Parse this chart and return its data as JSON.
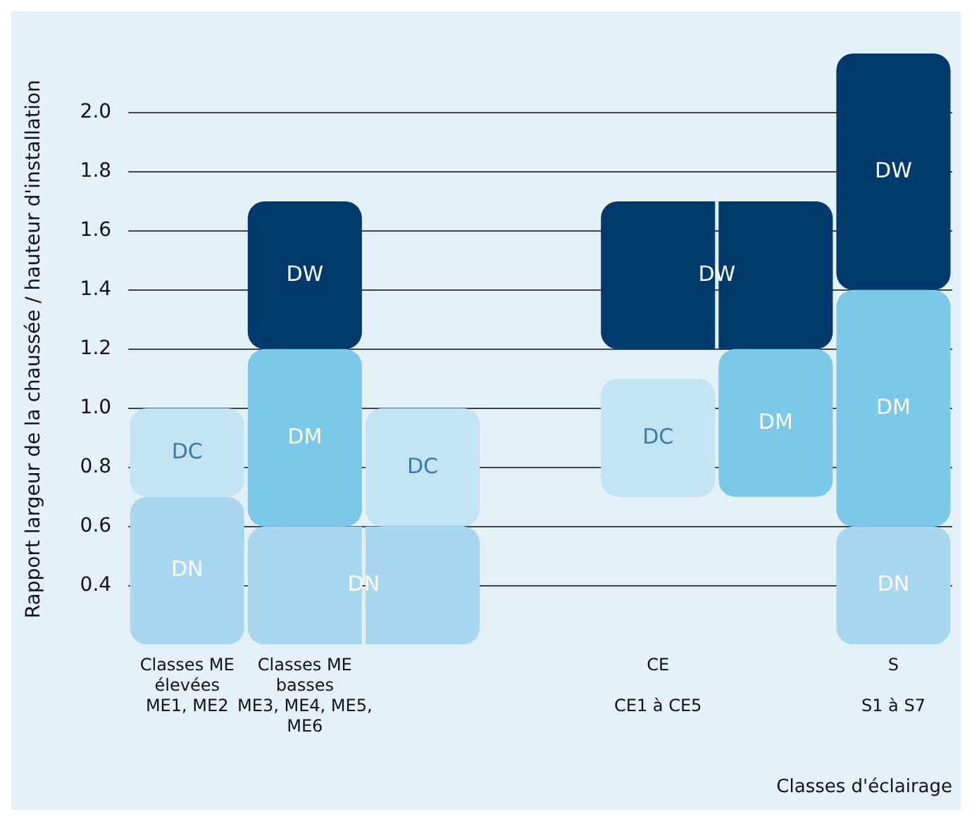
{
  "chart_data": {
    "type": "bar",
    "xlabel": "Classes d'éclairage",
    "ylabel": "Rapport largeur de la chaussée / hauteur d'installation",
    "categories": [
      "Classes ME\nélevées\nME1, ME2",
      "Classes ME\nbasses\nME3, ME4, ME5,\nME6",
      null,
      null,
      "CE\n\nCE1 à CE5",
      null,
      "S\n\nS1 à S7"
    ],
    "series": [
      {
        "name": "DN",
        "color": "#a9d7ef",
        "base": [
          0.2,
          0.2,
          0.2,
          null,
          null,
          null,
          0.2
        ],
        "values": [
          0.5,
          0.4,
          0.4,
          null,
          null,
          null,
          0.4
        ]
      },
      {
        "name": "DC",
        "color": "#c3e4f5",
        "base": [
          0.7,
          null,
          0.6,
          null,
          0.7,
          null,
          null
        ],
        "values": [
          0.3,
          null,
          0.4,
          null,
          0.4,
          null,
          null
        ]
      },
      {
        "name": "DM",
        "color": "#7cc8e8",
        "base": [
          null,
          0.6,
          null,
          null,
          null,
          0.7,
          0.6
        ],
        "values": [
          null,
          0.6,
          null,
          null,
          null,
          0.5,
          0.8
        ]
      },
      {
        "name": "DW",
        "color": "#003a6c",
        "base": [
          null,
          1.2,
          null,
          null,
          1.2,
          1.2,
          1.4
        ],
        "values": [
          null,
          0.5,
          null,
          null,
          0.5,
          0.5,
          0.8
        ]
      }
    ],
    "ylim": [
      0.2,
      2.2
    ],
    "yticks": [
      0.4,
      0.6,
      0.8,
      {
        "value": 1,
        "label": "1.0"
      },
      1.2,
      1.4,
      1.6,
      1.8,
      {
        "value": 2,
        "label": "2.0"
      }
    ],
    "grid": "y",
    "legend": false
  }
}
